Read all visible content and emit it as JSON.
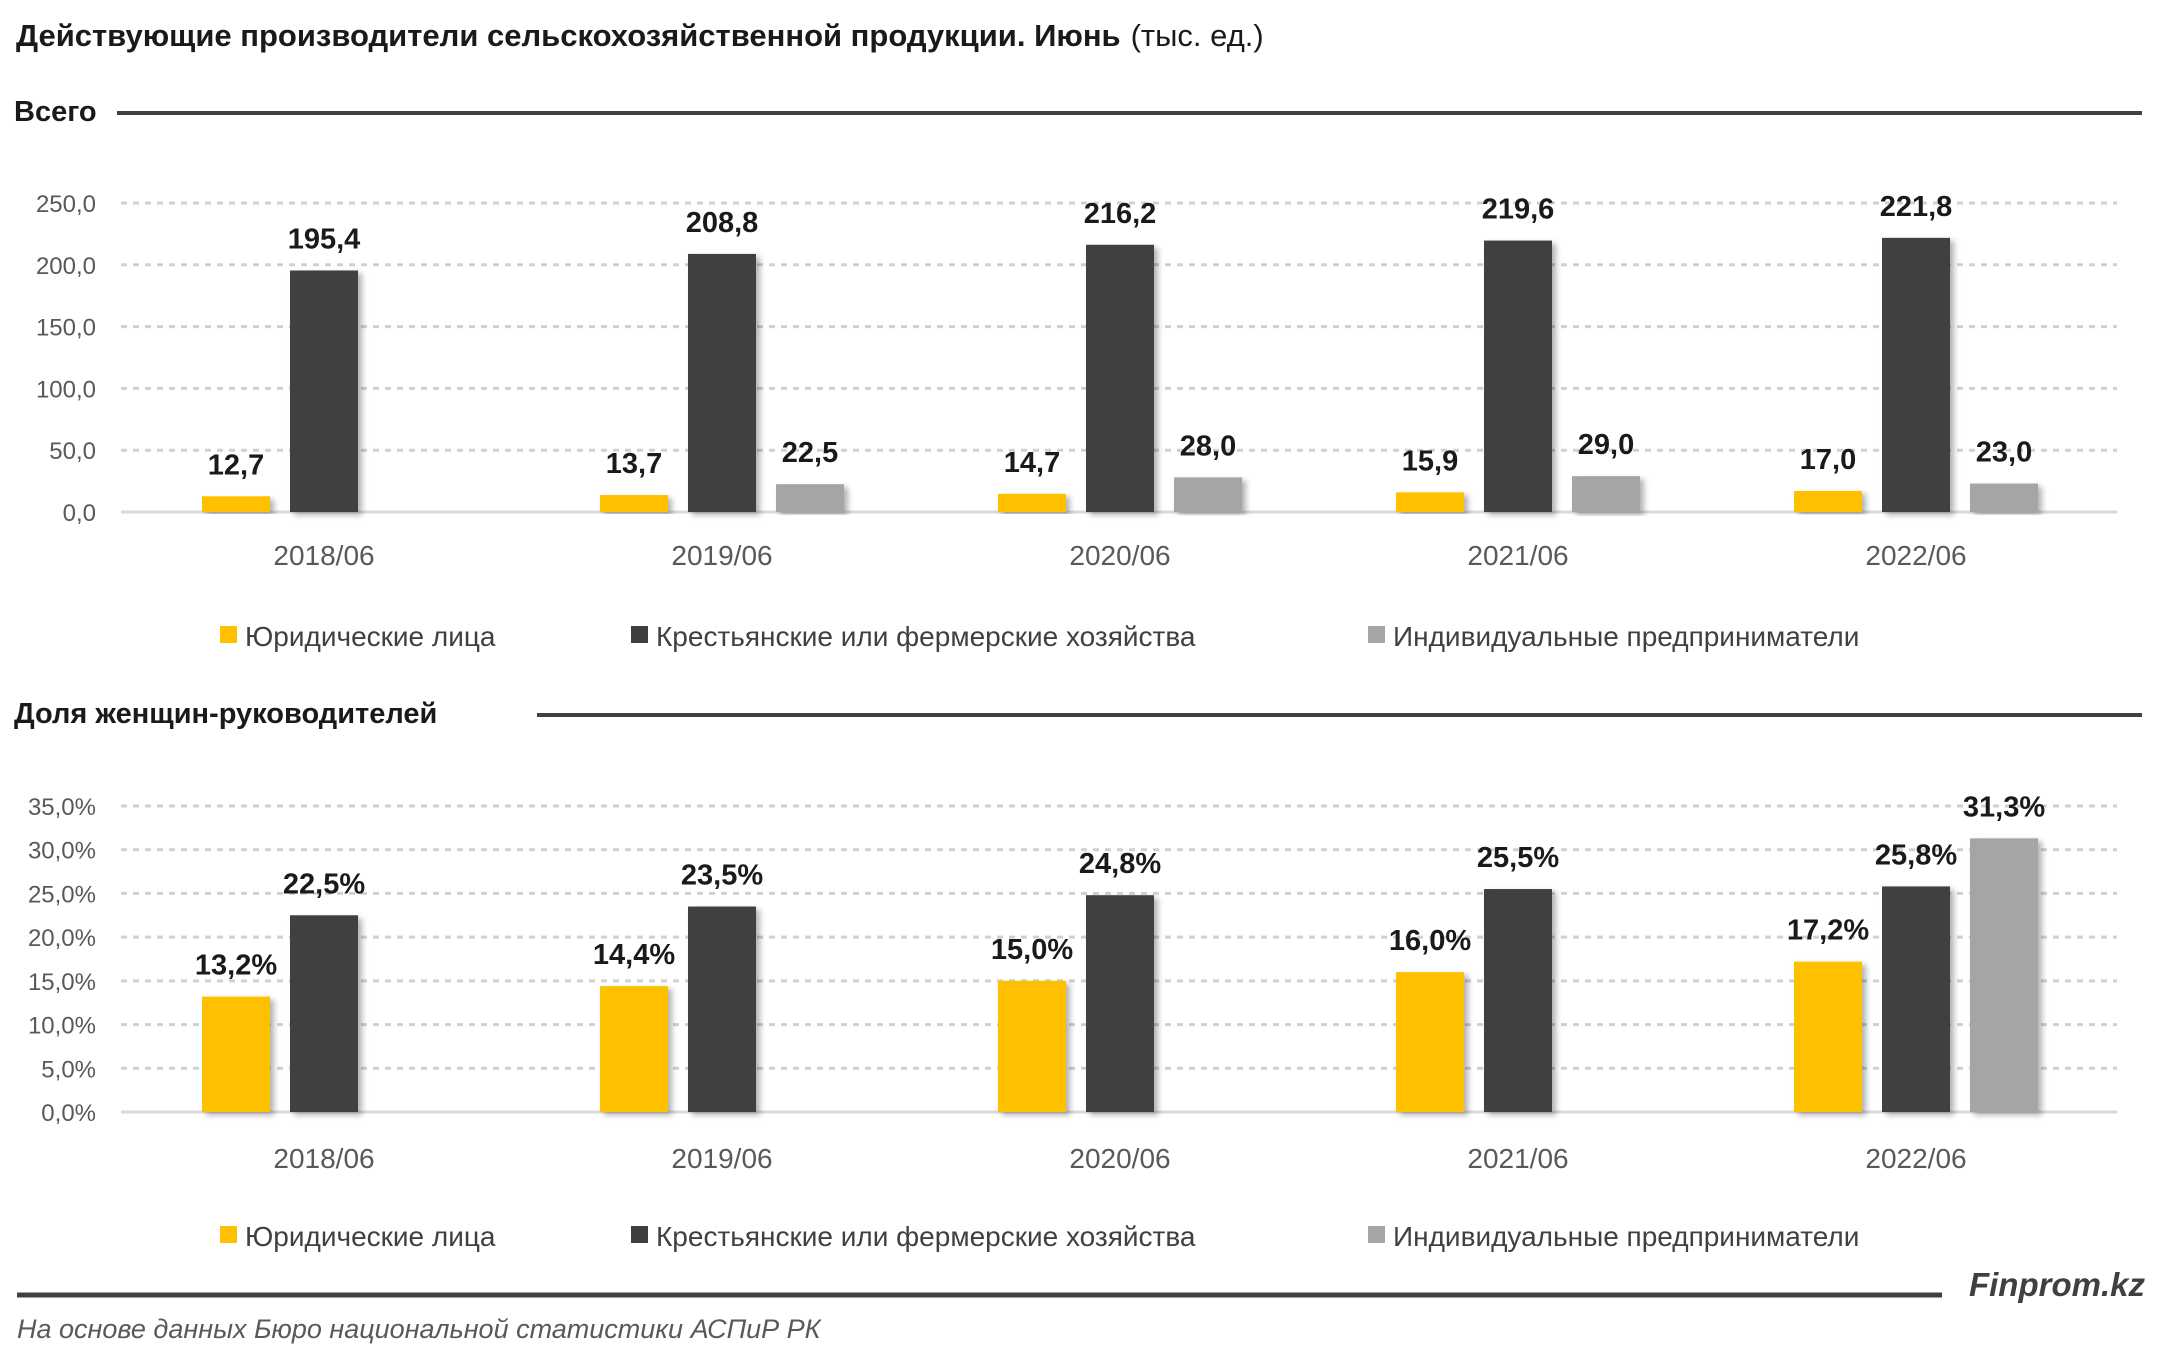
{
  "title": {
    "main": "Действующие производители сельскохозяйственной продукции. Июнь",
    "unit": "(тыс. ед.)"
  },
  "colors": {
    "legal_entities": "#FFC000",
    "farms": "#3F3F3F",
    "entrepreneurs": "#A5A5A5"
  },
  "legend": [
    {
      "label": "Юридические лица",
      "color": "#FFC000"
    },
    {
      "label": "Крестьянские или фермерские хозяйства",
      "color": "#3F3F3F"
    },
    {
      "label": "Индивидуальные предприниматели",
      "color": "#A5A5A5"
    }
  ],
  "chart_data": [
    {
      "type": "bar",
      "title": "Всего",
      "categories": [
        "2018/06",
        "2019/06",
        "2020/06",
        "2021/06",
        "2022/06"
      ],
      "ylim": [
        0,
        250
      ],
      "yticks": [
        "0,0",
        "50,0",
        "100,0",
        "150,0",
        "200,0",
        "250,0"
      ],
      "grid": true,
      "legend_position": "bottom",
      "series": [
        {
          "name": "Юридические лица",
          "values": [
            12.7,
            13.7,
            14.7,
            15.9,
            17.0
          ],
          "labels": [
            "12,7",
            "13,7",
            "14,7",
            "15,9",
            "17,0"
          ]
        },
        {
          "name": "Крестьянские или фермерские хозяйства",
          "values": [
            195.4,
            208.8,
            216.2,
            219.6,
            221.8
          ],
          "labels": [
            "195,4",
            "208,8",
            "216,2",
            "219,6",
            "221,8"
          ]
        },
        {
          "name": "Индивидуальные предприниматели",
          "values": [
            null,
            22.5,
            28.0,
            29.0,
            23.0
          ],
          "labels": [
            "",
            "22,5",
            "28,0",
            "29,0",
            "23,0"
          ]
        }
      ]
    },
    {
      "type": "bar",
      "title": "Доля женщин-руководителей",
      "categories": [
        "2018/06",
        "2019/06",
        "2020/06",
        "2021/06",
        "2022/06"
      ],
      "ylim": [
        0,
        35
      ],
      "yticks": [
        "0,0%",
        "5,0%",
        "10,0%",
        "15,0%",
        "20,0%",
        "25,0%",
        "30,0%",
        "35,0%"
      ],
      "grid": true,
      "legend_position": "bottom",
      "series": [
        {
          "name": "Юридические лица",
          "values": [
            13.2,
            14.4,
            15.0,
            16.0,
            17.2
          ],
          "labels": [
            "13,2%",
            "14,4%",
            "15,0%",
            "16,0%",
            "17,2%"
          ]
        },
        {
          "name": "Крестьянские или фермерские хозяйства",
          "values": [
            22.5,
            23.5,
            24.8,
            25.5,
            25.8
          ],
          "labels": [
            "22,5%",
            "23,5%",
            "24,8%",
            "25,5%",
            "25,8%"
          ]
        },
        {
          "name": "Индивидуальные предприниматели",
          "values": [
            null,
            null,
            null,
            null,
            31.3
          ],
          "labels": [
            "",
            "",
            "",
            "",
            "31,3%"
          ]
        }
      ]
    }
  ],
  "footer": {
    "brand": "Finprom.kz",
    "source": "На основе данных Бюро национальной статистики АСПиР РК"
  }
}
